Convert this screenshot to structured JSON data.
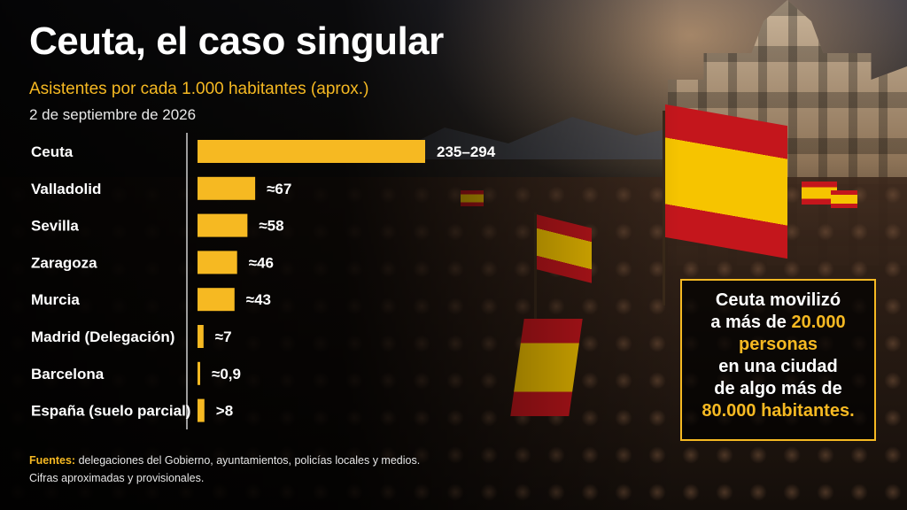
{
  "header": {
    "title": "Ceuta, el caso singular",
    "subtitle": "Asistentes por cada 1.000 habitantes (aprox.)",
    "date": "2 de septiembre de 2026"
  },
  "chart_data": {
    "type": "bar",
    "orientation": "horizontal",
    "categories": [
      "Ceuta",
      "Valladolid",
      "Sevilla",
      "Zaragoza",
      "Murcia",
      "Madrid (Delegación)",
      "Barcelona",
      "España (suelo parcial)"
    ],
    "values": [
      264.5,
      67,
      58,
      46,
      43,
      7,
      0.9,
      8
    ],
    "value_labels": [
      "235–294",
      "≈67",
      "≈58",
      "≈46",
      "≈43",
      "≈7",
      "≈0,9",
      ">8"
    ],
    "xlim": [
      0,
      264.5
    ],
    "grid": false,
    "bar_color": "#f6b922"
  },
  "callout": {
    "line1": "Ceuta movilizó",
    "line2_pre": "a más de ",
    "line2_hl": "20.000",
    "line3_hl": "personas",
    "line4": "en una ciudad",
    "line5": "de algo más de",
    "line6_hl": "80.000 habitantes."
  },
  "footer": {
    "sources_lead": "Fuentes:",
    "sources_text": " delegaciones del Gobierno, ayuntamientos, policías locales y medios.",
    "note": "Cifras aproximadas y provisionales."
  },
  "colors": {
    "accent": "#f6b922",
    "flag_red": "#c4161c",
    "flag_yellow": "#f6c400"
  }
}
